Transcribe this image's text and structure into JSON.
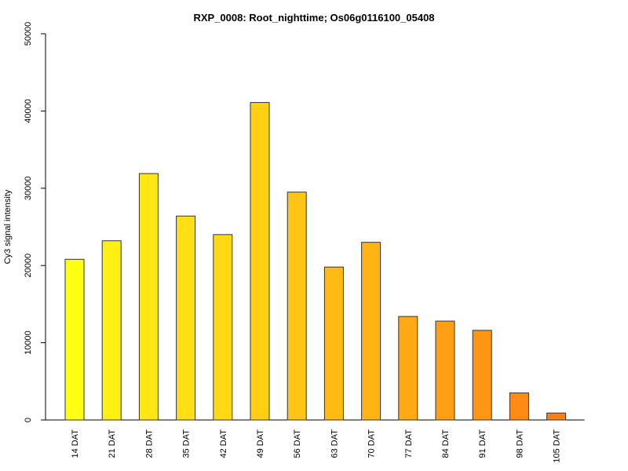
{
  "chart_data": {
    "type": "bar",
    "title": "RXP_0008: Root_nighttime; Os06g0116100_05408",
    "xlabel": "",
    "ylabel": "Cy3 signal intensity",
    "ylim": [
      0,
      50000
    ],
    "yticks": [
      "0",
      "10000",
      "20000",
      "30000",
      "40000",
      "50000"
    ],
    "categories": [
      "14 DAT",
      "21 DAT",
      "28 DAT",
      "35 DAT",
      "42 DAT",
      "49 DAT",
      "56 DAT",
      "63 DAT",
      "70 DAT",
      "77 DAT",
      "84 DAT",
      "91 DAT",
      "98 DAT",
      "105 DAT"
    ],
    "values": [
      20800,
      23200,
      31900,
      26400,
      24000,
      41100,
      29500,
      19800,
      23000,
      13400,
      12800,
      11600,
      3500,
      900
    ],
    "colors": [
      "#ffff14",
      "#fff014",
      "#ffe614",
      "#ffe014",
      "#ffda14",
      "#ffcf14",
      "#ffc514",
      "#ffba14",
      "#ffb414",
      "#ffaa14",
      "#ffa014",
      "#ff9514",
      "#ff8b14",
      "#ff7f14"
    ],
    "grid": false,
    "legend": "none"
  }
}
